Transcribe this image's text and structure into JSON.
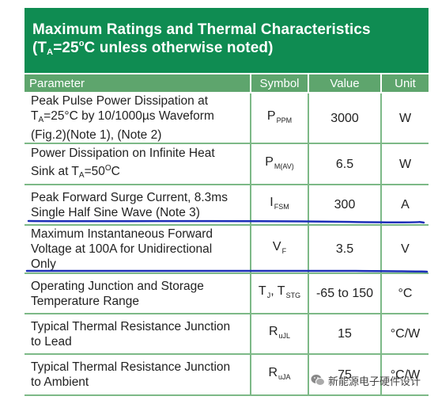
{
  "header": {
    "title": "Maximum Ratings and Thermal Characteristics",
    "subtitle_prefix": "(T",
    "subtitle_sub": "A",
    "subtitle_mid": "=25",
    "subtitle_sup": "o",
    "subtitle_suffix": "C unless otherwise noted)"
  },
  "columns": {
    "parameter": "Parameter",
    "symbol": "Symbol",
    "value": "Value",
    "unit": "Unit"
  },
  "rows": [
    {
      "p1": "Peak Pulse Power Dissipation at",
      "p2a": "T",
      "p2sub": "A",
      "p2b": "=25°C by 10/1000µs Waveform",
      "p3": "(Fig.2)(Note 1), (Note 2)",
      "sym": "P",
      "sym_sub": "PPM",
      "value": "3000",
      "unit": "W"
    },
    {
      "p1": "Power Dissipation on Infinite Heat",
      "p2a": "Sink at T",
      "p2sub": "A",
      "p2b": "=50",
      "p2sup": "O",
      "p2c": "C",
      "sym": "P",
      "sym_sub": "M(AV)",
      "value": "6.5",
      "unit": "W"
    },
    {
      "p1": "Peak Forward Surge Current, 8.3ms",
      "p2": "Single Half Sine Wave (Note 3)",
      "sym": "I",
      "sym_sub": "FSM",
      "value": "300",
      "unit": "A"
    },
    {
      "p1": "Maximum Instantaneous Forward",
      "p2": "Voltage at 100A for Unidirectional",
      "p3": "Only",
      "sym": "V",
      "sym_sub": "F",
      "value": "3.5",
      "unit": "V"
    },
    {
      "p1": "Operating Junction and Storage",
      "p2": "Temperature Range",
      "sym": "T",
      "sym_sub": "J",
      "sym_mid": ", T",
      "sym_sub2": "STG",
      "value": "-65 to 150",
      "unit": "°C"
    },
    {
      "p1": "Typical Thermal Resistance Junction",
      "p2": "to Lead",
      "sym": "R",
      "sym_sub": "uJL",
      "value": "15",
      "unit": "°C/W"
    },
    {
      "p1": "Typical Thermal Resistance Junction",
      "p2": "to Ambient",
      "sym": "R",
      "sym_sub": "uJA",
      "value": "75",
      "unit": "°C/W"
    }
  ],
  "watermark": {
    "text": "新能源电子硬件设计",
    "icon": "wechat-icon"
  },
  "colors": {
    "header_bg": "#0f8c52",
    "column_header_bg": "#5ea56d",
    "grid": "#7db987",
    "annotation_pen": "#1c2fb8"
  }
}
